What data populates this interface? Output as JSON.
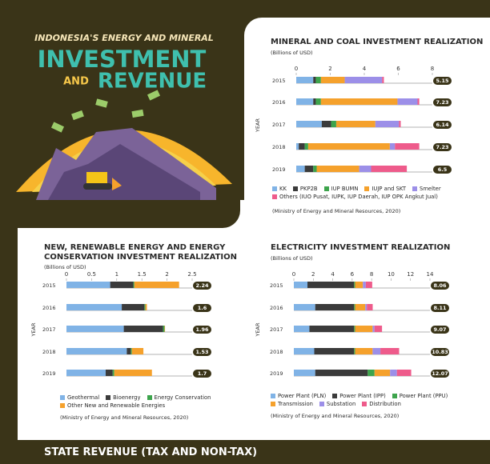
{
  "header": {
    "kicker": "INDONESIA'S ENERGY AND MINERAL",
    "title_line1": "INVESTMENT",
    "title_and": "AND",
    "title_line2": "REVENUE"
  },
  "chart_data": [
    {
      "type": "bar",
      "orientation": "horizontal",
      "stacked": true,
      "title": "MINERAL AND COAL INVESTMENT REALIZATION",
      "unit": "(Billions of USD)",
      "y_label": "YEAR",
      "categories": [
        "2015",
        "2016",
        "2017",
        "2018",
        "2019"
      ],
      "series": [
        {
          "name": "KK",
          "color": "#80b3e6",
          "values": [
            1.0,
            1.0,
            1.5,
            0.15,
            0.5
          ]
        },
        {
          "name": "PKP2B",
          "color": "#3b3b3b",
          "values": [
            0.15,
            0.15,
            0.55,
            0.35,
            0.5
          ]
        },
        {
          "name": "IUP BUMN",
          "color": "#3da44c",
          "values": [
            0.3,
            0.3,
            0.3,
            0.2,
            0.2
          ]
        },
        {
          "name": "IUJP and SKT",
          "color": "#f5a12c",
          "values": [
            1.4,
            4.5,
            2.3,
            4.8,
            2.5
          ]
        },
        {
          "name": "Smelter",
          "color": "#9c8fe8",
          "values": [
            2.2,
            1.18,
            1.39,
            0.3,
            0.7
          ]
        },
        {
          "name": "Others (IUO Pusat, IUPK, IUP Daerah, IUP OPK Angkut Jual)",
          "color": "#ee5b8b",
          "values": [
            0.1,
            0.1,
            0.1,
            1.43,
            2.1
          ]
        }
      ],
      "totals": [
        5.15,
        7.23,
        6.14,
        7.23,
        6.5
      ],
      "xlim": [
        0,
        8
      ],
      "xticks": [
        0,
        2,
        4,
        6,
        8
      ],
      "source": "(Ministry of Energy and Mineral Resources, 2020)"
    },
    {
      "type": "bar",
      "orientation": "horizontal",
      "stacked": true,
      "title": "NEW, RENEWABLE ENERGY AND ENERGY CONSERVATION INVESTMENT REALIZATION",
      "unit": "(Billions of USD)",
      "y_label": "YEAR",
      "categories": [
        "2015",
        "2016",
        "2017",
        "2018",
        "2019"
      ],
      "series": [
        {
          "name": "Geothermal",
          "color": "#80b3e6",
          "values": [
            0.87,
            1.1,
            1.14,
            1.2,
            0.78
          ]
        },
        {
          "name": "Bioenergy",
          "color": "#3b3b3b",
          "values": [
            0.46,
            0.45,
            0.78,
            0.08,
            0.14
          ]
        },
        {
          "name": "Energy Conservation",
          "color": "#3da44c",
          "values": [
            0.02,
            0.02,
            0.03,
            0.02,
            0.03
          ]
        },
        {
          "name": "Other New and Renewable Energies",
          "color": "#f5a12c",
          "values": [
            0.89,
            0.03,
            0.01,
            0.23,
            0.75
          ]
        }
      ],
      "totals": [
        2.24,
        1.6,
        1.96,
        1.53,
        1.7
      ],
      "xlim": [
        0,
        2.5
      ],
      "xticks": [
        0,
        0.5,
        1,
        1.5,
        2,
        2.5
      ],
      "source": "(Ministry of Energy and Mineral Resources, 2020)"
    },
    {
      "type": "bar",
      "orientation": "horizontal",
      "stacked": true,
      "title": "ELECTRICITY INVESTMENT REALIZATION",
      "unit": "(Billions of USD)",
      "y_label": "YEAR",
      "categories": [
        "2015",
        "2016",
        "2017",
        "2018",
        "2019"
      ],
      "series": [
        {
          "name": "Power Plant (PLN)",
          "color": "#80b3e6",
          "values": [
            1.4,
            2.2,
            1.6,
            2.1,
            2.2
          ]
        },
        {
          "name": "Power Plant (IPP)",
          "color": "#3b3b3b",
          "values": [
            4.8,
            4.0,
            4.6,
            4.1,
            5.4
          ]
        },
        {
          "name": "Power Plant (PPU)",
          "color": "#3da44c",
          "values": [
            0.1,
            0.1,
            0.1,
            0.1,
            0.7
          ]
        },
        {
          "name": "Transmission",
          "color": "#f5a12c",
          "values": [
            0.8,
            1.05,
            1.8,
            1.8,
            1.6
          ]
        },
        {
          "name": "Substation",
          "color": "#9c8fe8",
          "values": [
            0.3,
            0.16,
            0.2,
            0.8,
            0.7
          ]
        },
        {
          "name": "Distribution",
          "color": "#ee5b8b",
          "values": [
            0.66,
            0.6,
            0.77,
            1.93,
            1.47
          ]
        }
      ],
      "totals": [
        8.06,
        8.11,
        9.07,
        10.83,
        12.07
      ],
      "xlim": [
        0,
        14
      ],
      "xticks": [
        0,
        2,
        4,
        6,
        8,
        10,
        12,
        14
      ],
      "source": "(Ministry of Energy and Mineral Resources, 2020)"
    }
  ],
  "footer": {
    "title": "STATE REVENUE (TAX AND NON-TAX)"
  }
}
